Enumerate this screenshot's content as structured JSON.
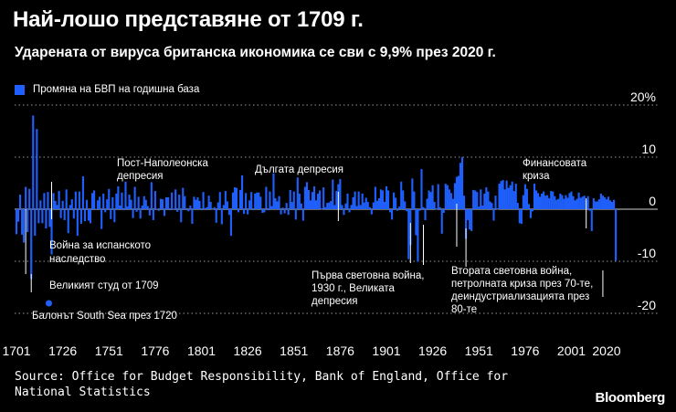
{
  "title": "Най-лошо представяне от 1709 г.",
  "subtitle": "Ударената от вируса британска икономика се сви с 9,9% през 2020 г.",
  "legend_label": "Промяна на БВП на годишна база",
  "source": "Source: Office for Budget Responsibility, Bank of England, Office for National Statistics",
  "brand": "Bloomberg",
  "colors": {
    "bar": "#1f5ffb",
    "background": "#000000",
    "text": "#ffffff",
    "grid": "#9a9a9a"
  },
  "chart_data": {
    "type": "bar",
    "title": "Най-лошо представяне от 1709 г.",
    "series_name": "Промяна на БВП на годишна база",
    "ylim": [
      -20,
      20
    ],
    "yticks": [
      20,
      10,
      0,
      -10,
      -20
    ],
    "ytick_labels": [
      "20%",
      "10",
      "0",
      "-10",
      "-20"
    ],
    "xlim": [
      1700,
      2021
    ],
    "xticks": [
      1701,
      1726,
      1751,
      1776,
      1801,
      1826,
      1851,
      1876,
      1901,
      1926,
      1951,
      1976,
      2001,
      2020
    ],
    "xtick_labels": [
      "1701",
      "1726",
      "1751",
      "1776",
      "1801",
      "1826",
      "1851",
      "1876",
      "1901",
      "1926",
      "1951",
      "1976",
      "2001",
      "2020"
    ],
    "x_start": 1701,
    "values": [
      -4.8,
      -2.4,
      2.8,
      -4.9,
      -6.4,
      4.3,
      -4.4,
      3.9,
      -13.4,
      18.0,
      -5.1,
      15.4,
      -2.7,
      1.7,
      -2.7,
      3.1,
      -3.7,
      3.3,
      -3.4,
      -8.7,
      3.1,
      1.6,
      0.8,
      3.5,
      -1.7,
      1.6,
      -2.1,
      3.8,
      -4.6,
      0.8,
      1.9,
      -1.8,
      3.4,
      -5.1,
      3.4,
      -2.8,
      6.3,
      -2.3,
      1.8,
      -2.2,
      -2.7,
      3.1,
      3.6,
      0.1,
      1.7,
      2.4,
      -3.8,
      3.0,
      -0.6,
      1.9,
      3.9,
      -1.9,
      2.3,
      -2.5,
      3.0,
      4.4,
      0.7,
      3.2,
      -0.2,
      5.3,
      0.5,
      2.8,
      1.8,
      -1.7,
      4.3,
      -0.5,
      2.4,
      -1.8,
      0.7,
      2.5,
      1.8,
      0.6,
      -1.2,
      5.2,
      -2.1,
      3.5,
      0.1,
      -0.3,
      2.0,
      1.9,
      -1.3,
      2.3,
      2.3,
      -0.2,
      3.2,
      0.1,
      3.8,
      -0.5,
      2.8,
      -2.5,
      4.1,
      2.5,
      -0.2,
      -0.4,
      0.7,
      -2.8,
      2.4,
      1.8,
      2.3,
      1.6,
      -0.2,
      3.3,
      0.2,
      0.4,
      2.6,
      1.4,
      -0.1,
      0.4,
      -2.6,
      1.3,
      3.3,
      -2.9,
      0.8,
      3.5,
      1.5,
      -1.1,
      -5.1,
      3.2,
      4.2,
      4.1,
      -0.6,
      3.7,
      6.5,
      -0.9,
      3.1,
      -1.0,
      1.7,
      3.3,
      -0.2,
      3.0,
      3.2,
      3.2,
      2.4,
      -0.7,
      -0.6,
      4.3,
      -0.2,
      3.4,
      0.6,
      6.9,
      2.1,
      1.5,
      2.5,
      -1.0,
      0.3,
      -0.8,
      1.2,
      -1.1,
      3.7,
      1.4,
      3.4,
      -2.0,
      6.1,
      3.0,
      1.1,
      -2.2,
      4.3,
      5.2,
      3.7,
      1.7,
      3.3,
      4.4,
      1.7,
      3.0,
      3.6,
      0.0,
      4.2,
      0.4,
      1.2,
      1.3,
      1.6,
      5.7,
      0.8,
      3.5,
      4.8,
      5.8,
      0.8,
      -1.1,
      1.1,
      3.0,
      -0.6,
      0.8,
      2.3,
      3.4,
      0.6,
      3.4,
      0.8,
      3.0,
      1.3,
      2.2,
      1.4,
      0.4,
      -1.0,
      1.3,
      4.3,
      1.6,
      2.1,
      3.8,
      3.6,
      1.4,
      4.4,
      3.6,
      -0.6,
      -2.0,
      3.2,
      2.2,
      -0.3,
      0.5,
      5.3,
      3.6,
      1.5,
      -0.4,
      -9.6,
      -6.9,
      5.9,
      3.4,
      -5.0,
      -10.1,
      -0.3,
      7.7,
      0.4,
      -2.1,
      2.0,
      3.6,
      3.3,
      4.6,
      1.4,
      -0.1,
      4.8,
      0.4,
      -4.7,
      -0.7,
      4.9,
      4.6,
      3.8,
      3.1,
      2.0,
      5.0,
      6.2,
      6.4,
      8.9,
      10.0,
      2.6,
      -5.7,
      -2.1,
      -3.9,
      -4.2,
      3.7,
      3.6,
      3.3,
      0.5,
      3.8,
      0.7,
      3.0,
      4.2,
      3.4,
      1.5,
      1.2,
      -2.2,
      2.6,
      -0.1,
      4.9,
      5.4,
      5.6,
      3.8,
      5.5,
      4.1,
      4.6,
      5.3,
      3.5,
      4.9,
      1.2,
      -2.7,
      -2.8,
      2.7,
      4.8,
      3.9,
      1.0,
      -1.7,
      -0.4,
      4.9,
      3.6,
      3.1,
      2.4,
      3.0,
      3.4,
      2.6,
      2.7,
      2.1,
      3.5,
      3.4,
      2.5,
      1.8,
      2.0,
      3.0,
      2.7,
      2.0,
      2.7,
      2.2,
      3.1,
      3.4,
      2.5,
      1.7,
      2.0,
      3.2,
      2.2,
      2.4,
      2.6,
      1.8,
      2.5,
      -0.3,
      -4.2,
      2.1,
      1.5,
      1.5,
      1.9,
      3.0,
      2.6,
      2.3,
      1.9,
      2.4,
      1.7,
      1.4,
      1.8,
      -9.9
    ]
  },
  "annotations": [
    {
      "id": "spanish-succession",
      "lines": [
        "Война за испанското",
        "наследство"
      ]
    },
    {
      "id": "great-frost",
      "lines": [
        "Великият студ от 1709"
      ]
    },
    {
      "id": "south-sea",
      "lines": [
        "Балонът South Sea през 1720"
      ]
    },
    {
      "id": "post-napoleonic",
      "lines": [
        "Пост-Наполеонска",
        "депресия"
      ]
    },
    {
      "id": "long-depression",
      "lines": [
        "Дългата депресия"
      ]
    },
    {
      "id": "ww1",
      "lines": [
        "Първа световна война,",
        "1930 г., Великата",
        "депресия"
      ]
    },
    {
      "id": "ww2",
      "lines": [
        "Втората световна война,",
        "петролната криза през 70-те,",
        "деиндустриализацията през",
        "80-те"
      ]
    },
    {
      "id": "financial-crisis",
      "lines": [
        "Финансовата",
        "криза"
      ]
    }
  ]
}
